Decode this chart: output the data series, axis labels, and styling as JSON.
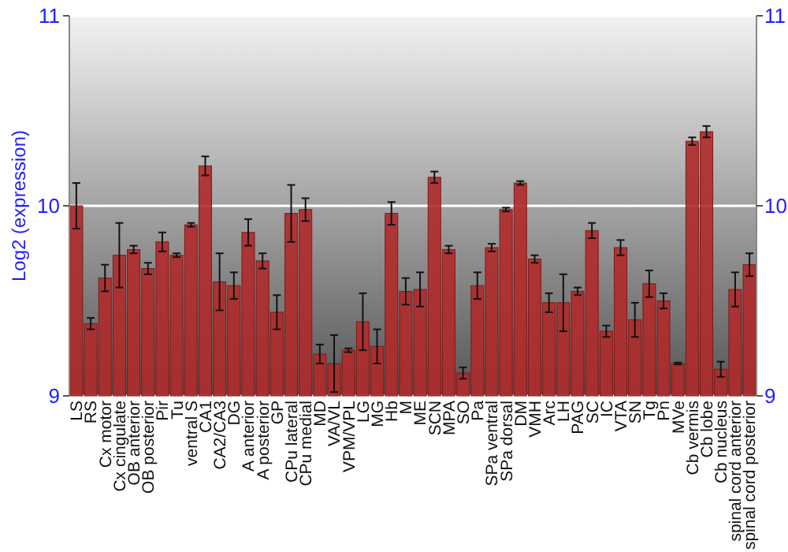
{
  "chart_data": {
    "type": "bar",
    "ylabel": "Log2 (expression)",
    "categories": [
      "LS",
      "RS",
      "Cx motor",
      "Cx cingulate",
      "OB anterior",
      "OB posterior",
      "Pir",
      "Tu",
      "ventral S",
      "CA1",
      "CA2/CA3",
      "DG",
      "A anterior",
      "A posterior",
      "GP",
      "CPu lateral",
      "CPu medial",
      "MD",
      "VA/VL",
      "VPM/VPL",
      "LG",
      "MG",
      "Hb",
      "M",
      "ME",
      "SCN",
      "MPA",
      "SO",
      "Pa",
      "SPa ventral",
      "SPa dorsal",
      "DM",
      "VMH",
      "Arc",
      "LH",
      "PAG",
      "SC",
      "IC",
      "VTA",
      "SN",
      "Tg",
      "Pn",
      "MVe",
      "Cb vermis",
      "Cb lobe",
      "Cb nucleus",
      "spinal cord anterior",
      "spinal cord posterior"
    ],
    "values": [
      10.0,
      9.38,
      9.62,
      9.74,
      9.77,
      9.67,
      9.81,
      9.74,
      9.9,
      10.21,
      9.6,
      9.58,
      9.86,
      9.71,
      9.44,
      9.96,
      9.98,
      9.22,
      9.17,
      9.24,
      9.39,
      9.26,
      9.96,
      9.55,
      9.56,
      10.15,
      9.77,
      9.12,
      9.58,
      9.78,
      9.98,
      10.12,
      9.72,
      9.49,
      9.49,
      9.55,
      9.87,
      9.34,
      9.78,
      9.4,
      9.59,
      9.5,
      9.17,
      10.34,
      10.39,
      9.14,
      9.56,
      9.69
    ],
    "errors": [
      0.12,
      0.03,
      0.07,
      0.17,
      0.02,
      0.03,
      0.05,
      0.01,
      0.01,
      0.05,
      0.15,
      0.07,
      0.07,
      0.04,
      0.09,
      0.15,
      0.06,
      0.05,
      0.15,
      0.01,
      0.15,
      0.09,
      0.06,
      0.07,
      0.09,
      0.03,
      0.02,
      0.03,
      0.07,
      0.02,
      0.01,
      0.01,
      0.02,
      0.05,
      0.15,
      0.02,
      0.04,
      0.03,
      0.04,
      0.09,
      0.07,
      0.04,
      0.005,
      0.02,
      0.03,
      0.04,
      0.09,
      0.06
    ],
    "color": "#b02a2a",
    "ylim": [
      9,
      11
    ],
    "yticks": [
      9,
      10,
      11
    ],
    "y2lim": [
      9,
      11
    ],
    "y2ticks": [
      9,
      10,
      11
    ],
    "grid": "y"
  }
}
